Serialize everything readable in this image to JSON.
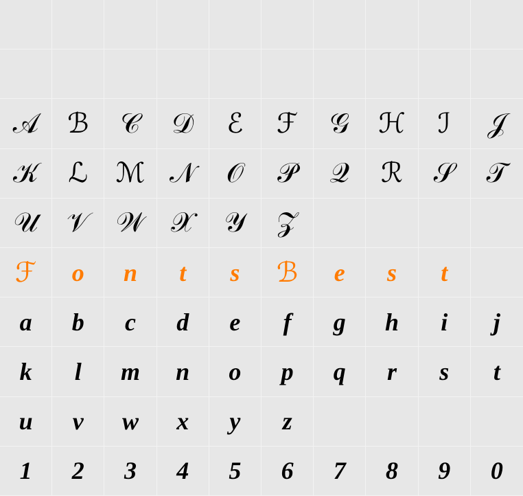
{
  "grid": {
    "cols": 10,
    "rows": 10,
    "background_color": "#e7e7e7",
    "gridline_color": "#f3f3f3",
    "text_color": "#000000",
    "highlight_color": "#ff7b00",
    "font_family": "cursive script",
    "cells": [
      [
        "",
        "",
        "",
        "",
        "",
        "",
        "",
        "",
        "",
        ""
      ],
      [
        "",
        "",
        "",
        "",
        "",
        "",
        "",
        "",
        "",
        ""
      ],
      [
        "A",
        "B",
        "C",
        "D",
        "E",
        "F",
        "G",
        "H",
        "I",
        "J"
      ],
      [
        "K",
        "L",
        "M",
        "N",
        "O",
        "P",
        "Q",
        "R",
        "S",
        "T"
      ],
      [
        "U",
        "V",
        "W",
        "X",
        "Y",
        "Z",
        "",
        "",
        "",
        ""
      ],
      [
        "F",
        "o",
        "n",
        "t",
        "s",
        "B",
        "e",
        "s",
        "t",
        ""
      ],
      [
        "a",
        "b",
        "c",
        "d",
        "e",
        "f",
        "g",
        "h",
        "i",
        "j"
      ],
      [
        "k",
        "l",
        "m",
        "n",
        "o",
        "p",
        "q",
        "r",
        "s",
        "t"
      ],
      [
        "u",
        "v",
        "w",
        "x",
        "y",
        "z",
        "",
        "",
        "",
        ""
      ],
      [
        "1",
        "2",
        "3",
        "4",
        "5",
        "6",
        "7",
        "8",
        "9",
        "0"
      ]
    ],
    "highlight_row_index": 5
  }
}
